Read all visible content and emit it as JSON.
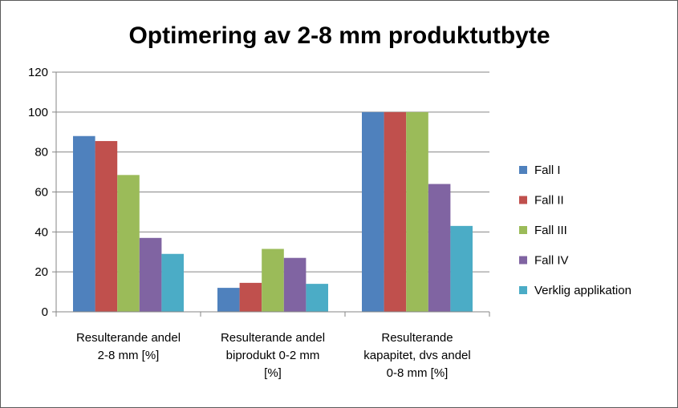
{
  "chart_data": {
    "type": "bar",
    "title": "Optimering av 2-8 mm produktutbyte",
    "categories": [
      [
        "Resulterande andel",
        "2-8 mm [%]"
      ],
      [
        "Resulterande andel",
        "biprodukt 0-2 mm",
        "[%]"
      ],
      [
        "Resulterande",
        "kapapitet, dvs andel",
        "0-8 mm [%]"
      ]
    ],
    "series": [
      {
        "name": "Fall I",
        "color": "#4f81bd",
        "values": [
          88,
          12,
          100
        ]
      },
      {
        "name": "Fall II",
        "color": "#c0504d",
        "values": [
          85.5,
          14.5,
          100
        ]
      },
      {
        "name": "Fall III",
        "color": "#9bbb59",
        "values": [
          68.5,
          31.5,
          100
        ]
      },
      {
        "name": "Fall IV",
        "color": "#8064a2",
        "values": [
          37,
          27,
          64
        ]
      },
      {
        "name": "Verklig applikation",
        "color": "#4bacc6",
        "values": [
          29,
          14,
          43
        ]
      }
    ],
    "ylim": [
      0,
      120
    ],
    "yticks": [
      0,
      20,
      40,
      60,
      80,
      100,
      120
    ],
    "grid": true,
    "legend": "right"
  }
}
